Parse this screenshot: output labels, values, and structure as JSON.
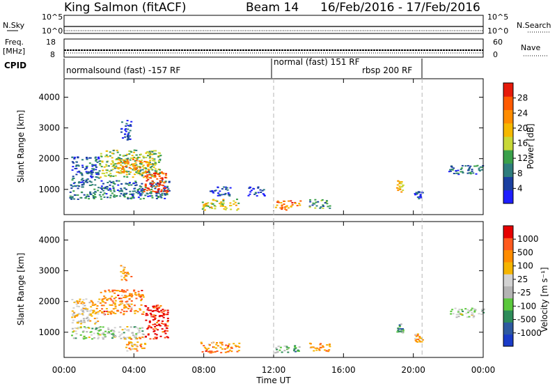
{
  "header": {
    "station": "King Salmon (fitACF)",
    "beam": "Beam 14",
    "date_range": "16/Feb/2016 - 17/Feb/2016"
  },
  "status_panels": {
    "nsky_label": "N.Sky",
    "nsky_ticks": [
      "10^5",
      "10^0"
    ],
    "nsearch_label": "N.Search",
    "nsearch_ticks": [
      "10^5",
      "10^0"
    ],
    "freq_label": [
      "Freq.",
      "[MHz]"
    ],
    "freq_ticks": [
      "18",
      "8"
    ],
    "nave_label": "Nave",
    "nave_ticks": [
      "60",
      "0"
    ],
    "cpid_label": "CPID",
    "cpid_segments": [
      {
        "label": "normalsound (fast) -157 RF",
        "start_hour": 0,
        "end_hour": 12
      },
      {
        "label": "normal (fast) 151 RF",
        "start_hour": 12,
        "end_hour": 20.5
      },
      {
        "label": "rbsp 200 RF",
        "start_hour": 12,
        "end_hour": 20.5
      }
    ]
  },
  "colors": {
    "power_scale": [
      "#1e1eff",
      "#1a3fa0",
      "#2e7d7d",
      "#3aa04a",
      "#c8d838",
      "#f5b800",
      "#ff8c00",
      "#ff5a00",
      "#e61a0a"
    ],
    "velocity_scale": [
      "#1a3cc8",
      "#2e5aa0",
      "#2e8c5a",
      "#5ac83c",
      "#b4b4b4",
      "#d2d2d2",
      "#f5b400",
      "#ff8c00",
      "#ff5a1e",
      "#e60000"
    ],
    "dashed_line": "#b4b4b4"
  },
  "chart_data": [
    {
      "type": "heatmap",
      "panel": "power",
      "ylabel": "Slant Range [km]",
      "ylim": [
        180,
        4600
      ],
      "yticks": [
        1000,
        2000,
        3000,
        4000
      ],
      "xlim": [
        0,
        24
      ],
      "colorbar_label": "Power [dB]",
      "colorbar_ticks": [
        "28",
        "24",
        "20",
        "16",
        "12",
        "8",
        "4"
      ],
      "colorbar_range": [
        0,
        32
      ],
      "blobs": [
        {
          "x0": 0.3,
          "x1": 6.0,
          "y0": 700,
          "y1": 1300,
          "level": 0.25
        },
        {
          "x0": 0.4,
          "x1": 2.0,
          "y0": 1300,
          "y1": 2100,
          "level": 0.2
        },
        {
          "x0": 2.0,
          "x1": 5.5,
          "y0": 1400,
          "y1": 2300,
          "level": 0.45
        },
        {
          "x0": 4.5,
          "x1": 5.9,
          "y0": 900,
          "y1": 1600,
          "level": 0.9
        },
        {
          "x0": 3.0,
          "x1": 4.8,
          "y0": 1500,
          "y1": 2000,
          "level": 0.7
        },
        {
          "x0": 3.2,
          "x1": 3.8,
          "y0": 2600,
          "y1": 3300,
          "level": 0.1
        },
        {
          "x0": 7.8,
          "x1": 10.0,
          "y0": 350,
          "y1": 700,
          "level": 0.55
        },
        {
          "x0": 8.2,
          "x1": 9.5,
          "y0": 800,
          "y1": 1100,
          "level": 0.15
        },
        {
          "x0": 10.5,
          "x1": 11.5,
          "y0": 800,
          "y1": 1100,
          "level": 0.1
        },
        {
          "x0": 12.0,
          "x1": 13.5,
          "y0": 350,
          "y1": 650,
          "level": 0.75
        },
        {
          "x0": 14.0,
          "x1": 15.2,
          "y0": 400,
          "y1": 700,
          "level": 0.3
        },
        {
          "x0": 19.0,
          "x1": 19.4,
          "y0": 900,
          "y1": 1300,
          "level": 0.6
        },
        {
          "x0": 20.0,
          "x1": 20.5,
          "y0": 700,
          "y1": 1000,
          "level": 0.15
        },
        {
          "x0": 22.0,
          "x1": 24.0,
          "y0": 1500,
          "y1": 1800,
          "level": 0.25
        }
      ]
    },
    {
      "type": "heatmap",
      "panel": "velocity",
      "ylabel": "Slant Range [km]",
      "xlabel": "Time UT",
      "ylim": [
        180,
        4600
      ],
      "yticks": [
        1000,
        2000,
        3000,
        4000
      ],
      "xlim": [
        0,
        24
      ],
      "xticks": [
        "00:00",
        "04:00",
        "08:00",
        "12:00",
        "16:00",
        "20:00",
        "00:00"
      ],
      "colorbar_label": "Velocity [m s⁻¹]",
      "colorbar_ticks": [
        "1000",
        "500",
        "100",
        "25",
        "-25",
        "-100",
        "-500",
        "-1000"
      ],
      "blobs": [
        {
          "x0": 0.3,
          "x1": 4.5,
          "y0": 800,
          "y1": 1200,
          "level": 0.45
        },
        {
          "x0": 0.4,
          "x1": 2.0,
          "y0": 1300,
          "y1": 2100,
          "level": 0.6
        },
        {
          "x0": 2.0,
          "x1": 4.5,
          "y0": 1600,
          "y1": 2400,
          "level": 0.75
        },
        {
          "x0": 4.6,
          "x1": 5.9,
          "y0": 800,
          "y1": 1900,
          "level": 0.95
        },
        {
          "x0": 3.5,
          "x1": 4.6,
          "y0": 400,
          "y1": 900,
          "level": 0.7
        },
        {
          "x0": 3.2,
          "x1": 3.8,
          "y0": 2700,
          "y1": 3200,
          "level": 0.7
        },
        {
          "x0": 7.8,
          "x1": 10.0,
          "y0": 350,
          "y1": 700,
          "level": 0.75
        },
        {
          "x0": 12.0,
          "x1": 13.5,
          "y0": 350,
          "y1": 600,
          "level": 0.35
        },
        {
          "x0": 14.0,
          "x1": 15.2,
          "y0": 400,
          "y1": 700,
          "level": 0.7
        },
        {
          "x0": 19.0,
          "x1": 19.4,
          "y0": 1000,
          "y1": 1300,
          "level": 0.3
        },
        {
          "x0": 20.0,
          "x1": 20.5,
          "y0": 700,
          "y1": 1000,
          "level": 0.7
        },
        {
          "x0": 22.0,
          "x1": 24.0,
          "y0": 1500,
          "y1": 1800,
          "level": 0.45
        }
      ]
    }
  ]
}
